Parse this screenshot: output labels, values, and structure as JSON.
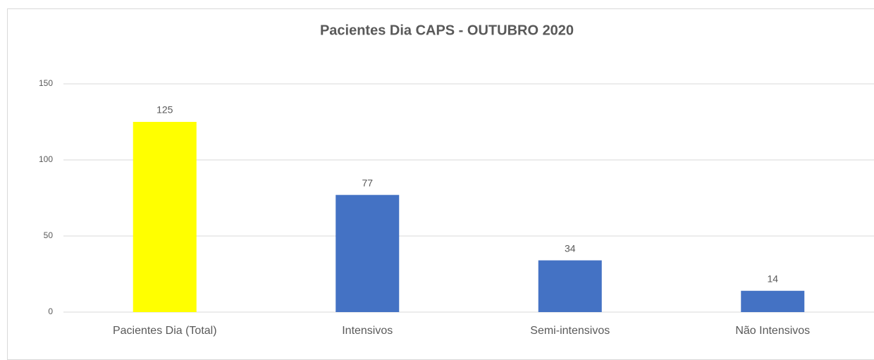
{
  "chart_data": {
    "type": "bar",
    "title": "Pacientes Dia  CAPS - OUTUBRO 2020",
    "categories": [
      "Pacientes Dia (Total)",
      "Intensivos",
      "Semi-intensivos",
      "Não Intensivos"
    ],
    "values": [
      125,
      77,
      34,
      14
    ],
    "colors": [
      "#ffff00",
      "#4472c4",
      "#4472c4",
      "#4472c4"
    ],
    "ylim": [
      0,
      150
    ],
    "yticks": [
      0,
      50,
      100,
      150
    ],
    "grid": true
  }
}
